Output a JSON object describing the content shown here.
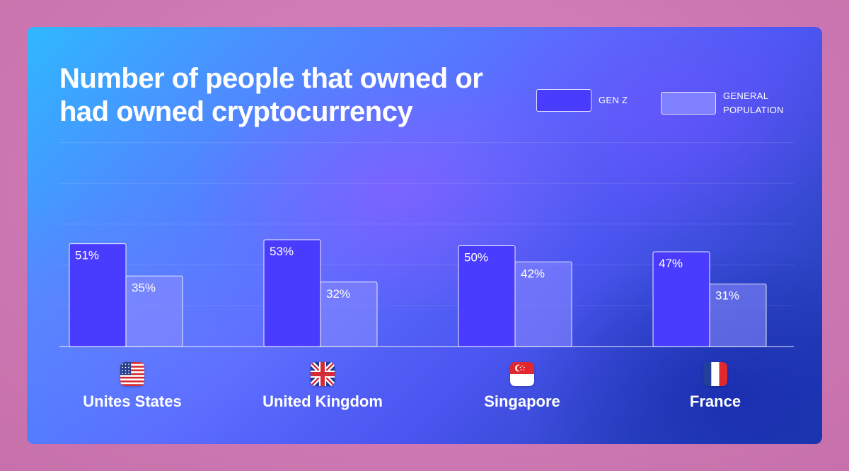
{
  "chart_data": {
    "type": "bar",
    "title": "Number of people that owned or had owned cryptocurrency",
    "categories": [
      "Unites States",
      "United Kingdom",
      "Singapore",
      "France"
    ],
    "series": [
      {
        "name": "GEN Z",
        "values": [
          51,
          53,
          50,
          47
        ],
        "labels": [
          "51%",
          "53%",
          "50%",
          "47%"
        ],
        "color": "#4a3cff"
      },
      {
        "name": "GENERAL POPULATION",
        "values": [
          35,
          32,
          42,
          31
        ],
        "labels": [
          "35%",
          "32%",
          "42%",
          "31%"
        ],
        "color": "#8a8cff"
      }
    ],
    "unit": "%",
    "ylim": [
      0,
      100
    ],
    "grid": true,
    "legend": "top-right",
    "xlabel": "",
    "ylabel": ""
  },
  "legend": {
    "gen_z": "GEN Z",
    "general_population": "GENERAL\nPOPULATION"
  },
  "flags": [
    "us-flag-icon",
    "uk-flag-icon",
    "singapore-flag-icon",
    "france-flag-icon"
  ],
  "colors": {
    "gen_z_fill": "#4a3cff",
    "general_fill": "#8a8cff",
    "outline": "#ffffff"
  }
}
